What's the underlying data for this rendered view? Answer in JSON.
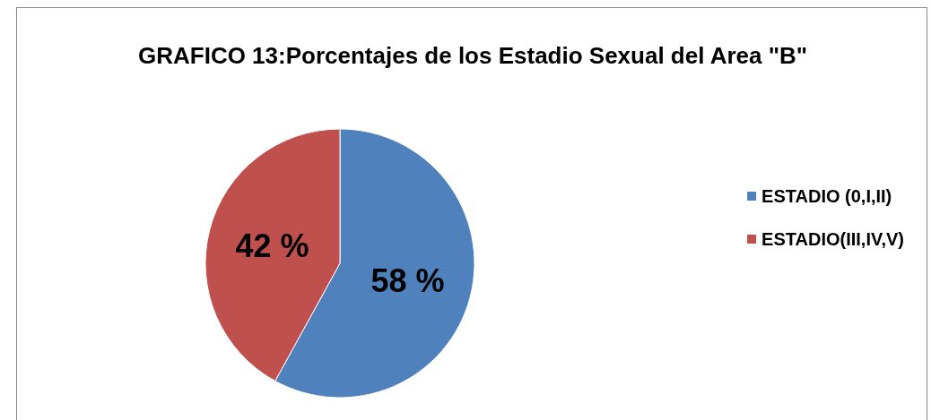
{
  "chart_data": {
    "type": "pie",
    "title": "GRAFICO 13:Porcentajes de los Estadio Sexual del Area \"B\"",
    "categories": [
      "ESTADIO (0,I,II)",
      "ESTADIO(III,IV,V)"
    ],
    "values": [
      58,
      42
    ],
    "colors": [
      "#4f81bd",
      "#c0504d"
    ],
    "value_labels": [
      "58 %",
      "42 %"
    ],
    "legend": "right"
  }
}
